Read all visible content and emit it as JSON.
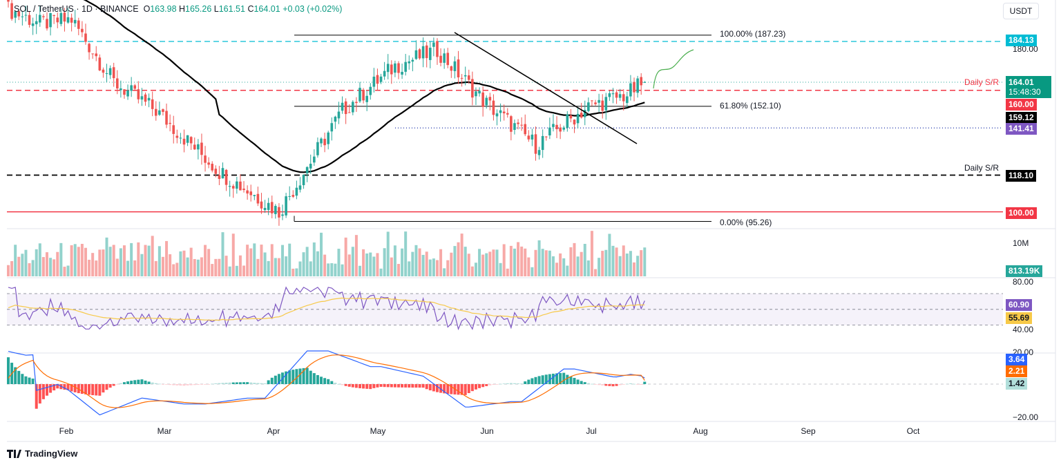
{
  "header": {
    "symbol": "SOL / TetherUS · 1D · BINANCE",
    "o_label": "O",
    "o_val": "163.98",
    "h_label": "H",
    "h_val": "165.26",
    "l_label": "L",
    "l_val": "161.51",
    "c_label": "C",
    "c_val": "164.01",
    "change": "+0.03 (+0.02%)"
  },
  "currency": "USDT",
  "price_tags": {
    "t184": "184.13",
    "last": "164.01",
    "countdown": "15:48:30",
    "t160": "160.00",
    "t159": "159.12",
    "t141": "141.41",
    "t118": "118.10",
    "t100": "100.00",
    "vol": "813.19K",
    "rsi": "60.90",
    "rsi_ma": "55.69",
    "macd": "3.64",
    "signal": "2.21",
    "hist": "1.42"
  },
  "axis_labels": {
    "p180": "180.00",
    "v10m": "10M",
    "r80": "80.00",
    "r40": "40.00",
    "r20": "20.00",
    "m_neg20": "−20.00"
  },
  "annotations": {
    "fib100": "100.00% (187.23)",
    "fib618": "61.80% (152.10)",
    "fib0": "0.00% (95.26)",
    "sr_top": "Daily S/R",
    "sr_bottom": "Daily S/R"
  },
  "x_labels": [
    "Feb",
    "Mar",
    "Apr",
    "May",
    "Jun",
    "Jul",
    "Aug",
    "Sep",
    "Oct"
  ],
  "logo": "TradingView",
  "colors": {
    "up": "#26a69a",
    "down": "#ef5350",
    "red_line": "#f23645",
    "cyan": "#00bcd4",
    "purple": "#7e57c2",
    "rsi_ma": "#f7c948",
    "macd": "#2962ff",
    "signal": "#ff6d00"
  },
  "chart_data": {
    "type": "candlestick",
    "symbol": "SOL / TetherUS",
    "interval": "1D",
    "last_ohlc": {
      "open": 163.98,
      "high": 165.26,
      "low": 161.51,
      "close": 164.01
    },
    "levels": [
      184.13,
      160.0,
      159.12,
      141.41,
      118.1,
      100.0
    ],
    "fibonacci": {
      "100%": 187.23,
      "61.8%": 152.1,
      "0%": 95.26
    },
    "x_ticks": [
      "Feb",
      "Mar",
      "Apr",
      "May",
      "Jun",
      "Jul",
      "Aug",
      "Sep",
      "Oct"
    ],
    "key_points": [
      {
        "date": "Jan 19",
        "price": 200
      },
      {
        "date": "Feb 1",
        "price": 193
      },
      {
        "date": "Feb 10",
        "price": 164
      },
      {
        "date": "Feb 21",
        "price": 150
      },
      {
        "date": "Mar 10",
        "price": 120
      },
      {
        "date": "Apr 7",
        "price": 98
      },
      {
        "date": "Apr 22",
        "price": 150
      },
      {
        "date": "May 10",
        "price": 172
      },
      {
        "date": "May 22",
        "price": 180
      },
      {
        "date": "Jun 4",
        "price": 155
      },
      {
        "date": "Jun 22",
        "price": 133
      },
      {
        "date": "Jul 3",
        "price": 150
      },
      {
        "date": "Jul 11",
        "price": 160
      },
      {
        "date": "Jul 16",
        "price": 164
      }
    ],
    "rsi": {
      "value": 60.9,
      "ma": 55.69,
      "levels": [
        70,
        30
      ],
      "axis_ticks": [
        80,
        40,
        20
      ]
    },
    "macd": {
      "macd": 3.64,
      "signal": 2.21,
      "histogram": 1.42
    },
    "volume_last": "813.19K"
  }
}
